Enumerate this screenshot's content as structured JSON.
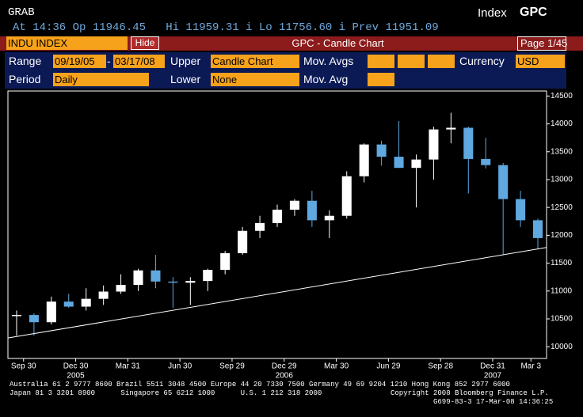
{
  "header": {
    "function": "GRAB",
    "security_type": "Index",
    "code": "GPC",
    "quote": "At 14:36 Op 11946.45   Hi 11959.31 i Lo 11756.60 i Prev 11951.09"
  },
  "toolbar": {
    "ticker": "INDU INDEX",
    "hide": "Hide",
    "title": "GPC - Candle Chart",
    "page": "Page 1/45"
  },
  "controls": {
    "range_label": "Range",
    "start": "09/19/05",
    "dash": "-",
    "end": "03/17/08",
    "upper_label": "Upper",
    "upper": "Candle Chart",
    "mov_avgs_label": "Mov. Avgs",
    "currency_label": "Currency",
    "currency": "USD",
    "period_label": "Period",
    "period": "Daily",
    "lower_label": "Lower",
    "lower": "None",
    "mov_avg_label": "Mov. Avg"
  },
  "chart_data": {
    "type": "candlestick",
    "open": [
      10550,
      10570,
      10440,
      10810,
      10720,
      10860,
      10990,
      11110,
      11370,
      11170,
      11150,
      11180,
      11380,
      11680,
      12080,
      12220,
      12460,
      12620,
      12270,
      12350,
      13060,
      13630,
      13410,
      13210,
      13360,
      13900,
      13930,
      13370,
      13260,
      12650,
      12270
    ],
    "high": [
      10650,
      10600,
      10900,
      10950,
      11050,
      11100,
      11300,
      11400,
      11650,
      11250,
      11250,
      11400,
      11720,
      12150,
      12350,
      12550,
      12650,
      12800,
      12450,
      13150,
      13650,
      13700,
      14050,
      13450,
      13950,
      14200,
      13950,
      13750,
      13300,
      12800,
      12300
    ],
    "low": [
      10200,
      10200,
      10400,
      10700,
      10650,
      10750,
      10950,
      11000,
      11050,
      10700,
      10750,
      11000,
      11300,
      11650,
      11950,
      12150,
      12350,
      12150,
      11950,
      12300,
      12950,
      13250,
      13250,
      12500,
      13000,
      13650,
      12750,
      13200,
      11650,
      12150,
      11750
    ],
    "close": [
      10570,
      10440,
      10810,
      10720,
      10860,
      10990,
      11110,
      11370,
      11170,
      11150,
      11180,
      11380,
      11680,
      12080,
      12220,
      12460,
      12620,
      12270,
      12350,
      13060,
      13630,
      13410,
      13210,
      13360,
      13900,
      13930,
      13370,
      13260,
      12650,
      12270,
      11950
    ],
    "xlim": [
      -0.5,
      30.5
    ],
    "xticks": [
      {
        "value": 0.4,
        "label": "Sep 30"
      },
      {
        "value": 3.4,
        "label": "Dec 30"
      },
      {
        "value": 6.4,
        "label": "Mar 31"
      },
      {
        "value": 9.4,
        "label": "Jun 30"
      },
      {
        "value": 12.4,
        "label": "Sep 29"
      },
      {
        "value": 15.4,
        "label": "Dec 29"
      },
      {
        "value": 18.4,
        "label": "Mar 30"
      },
      {
        "value": 21.4,
        "label": "Jun 29"
      },
      {
        "value": 24.4,
        "label": "Sep 28"
      },
      {
        "value": 27.4,
        "label": "Dec 31"
      },
      {
        "value": 29.6,
        "label": "Mar 3"
      }
    ],
    "years": [
      {
        "value": 3.4,
        "label": "2005"
      },
      {
        "value": 15.4,
        "label": "2006"
      },
      {
        "value": 27.4,
        "label": "2007"
      }
    ],
    "ylim": [
      9790,
      14590
    ],
    "yticks": [
      10000,
      10500,
      11000,
      11500,
      12000,
      12500,
      13000,
      13500,
      14000,
      14500
    ],
    "trendline": {
      "x": [
        -0.5,
        30.5
      ],
      "y": [
        10157,
        11781
      ]
    },
    "up_color": "#ffffff",
    "down_color": "#5fa8e0"
  },
  "footer": {
    "line1": "Australia 61 2 9777 8600 Brazil 5511 3048 4500 Europe 44 20 7330 7500 Germany 49 69 9204 1210 Hong Kong 852 2977 6000",
    "line2_left": "Japan 81 3 3201 8900      Singapore 65 6212 1000      U.S. 1 212 318 2000",
    "line2_right": "Copyright 2008 Bloomberg Finance L.P.",
    "line3": "G699-83-3 17-Mar-08 14:36:25"
  }
}
